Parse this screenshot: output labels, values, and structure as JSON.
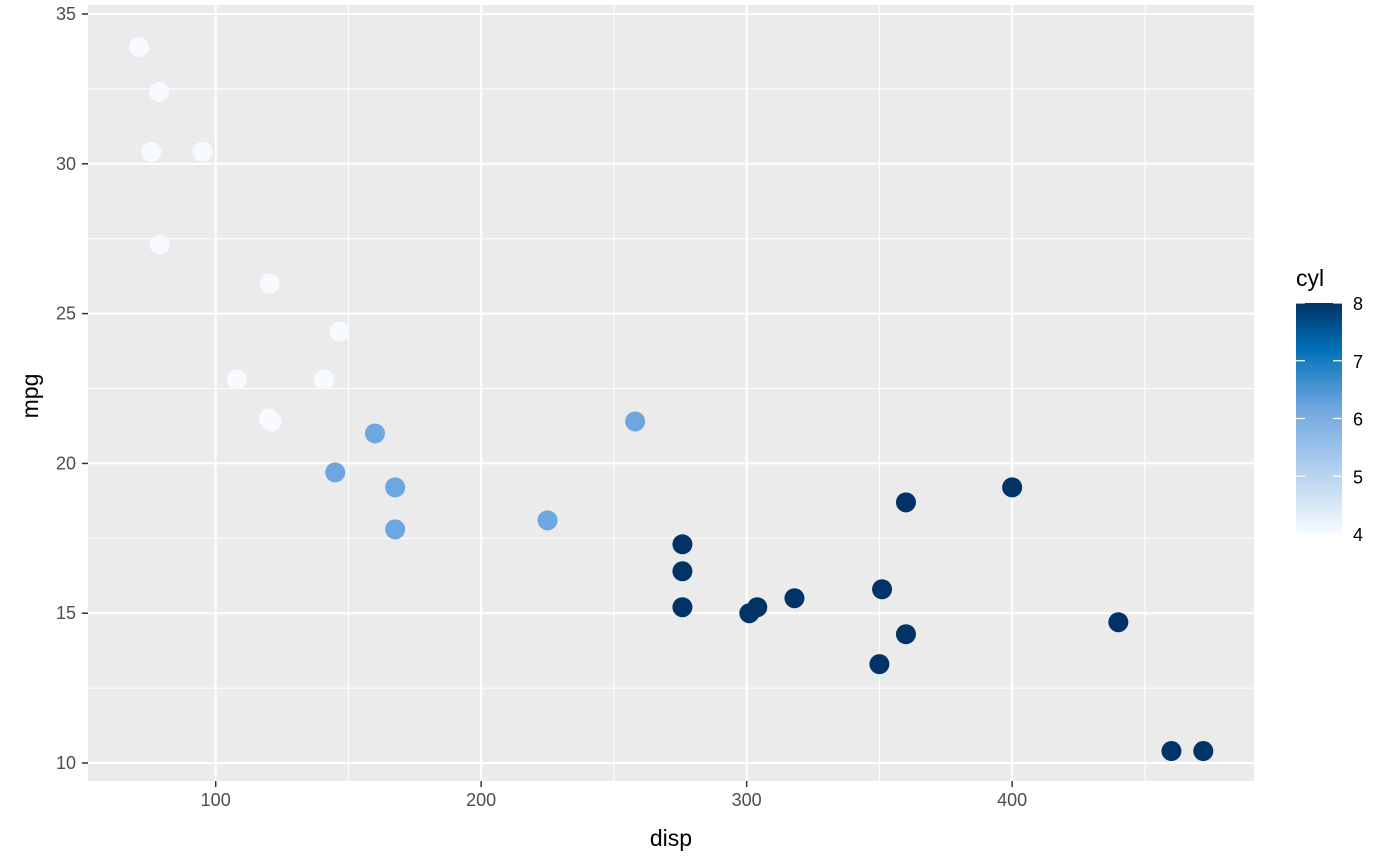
{
  "chart_data": {
    "type": "scatter",
    "title": "",
    "xlabel": "disp",
    "ylabel": "mpg",
    "xlim": [
      51.9,
      491.1
    ],
    "ylim": [
      9.4,
      35.3
    ],
    "x_ticks": [
      100,
      200,
      300,
      400
    ],
    "y_ticks": [
      10,
      15,
      20,
      25,
      30,
      35
    ],
    "grid": true,
    "panel_background": "#ebebeb",
    "grid_color": "#ffffff",
    "color_scale": {
      "title": "cyl",
      "min": 4,
      "max": 8,
      "breaks": [
        4,
        5,
        6,
        7,
        8
      ],
      "low_color": "#f7fbff",
      "mid_color": "#0072b8",
      "high_color": "#023366",
      "placement": "right"
    },
    "points": [
      {
        "x": 71.1,
        "y": 33.9,
        "cyl": 4
      },
      {
        "x": 78.7,
        "y": 32.4,
        "cyl": 4
      },
      {
        "x": 75.7,
        "y": 30.4,
        "cyl": 4
      },
      {
        "x": 95.1,
        "y": 30.4,
        "cyl": 4
      },
      {
        "x": 79.0,
        "y": 27.3,
        "cyl": 4
      },
      {
        "x": 120.3,
        "y": 26.0,
        "cyl": 4
      },
      {
        "x": 146.7,
        "y": 24.4,
        "cyl": 4
      },
      {
        "x": 108.0,
        "y": 22.8,
        "cyl": 4
      },
      {
        "x": 140.8,
        "y": 22.8,
        "cyl": 4
      },
      {
        "x": 120.1,
        "y": 21.5,
        "cyl": 4
      },
      {
        "x": 121.0,
        "y": 21.4,
        "cyl": 4
      },
      {
        "x": 160.0,
        "y": 21.0,
        "cyl": 6
      },
      {
        "x": 258.0,
        "y": 21.4,
        "cyl": 6
      },
      {
        "x": 145.0,
        "y": 19.7,
        "cyl": 6
      },
      {
        "x": 167.6,
        "y": 19.2,
        "cyl": 6
      },
      {
        "x": 225.0,
        "y": 18.1,
        "cyl": 6
      },
      {
        "x": 167.6,
        "y": 17.8,
        "cyl": 6
      },
      {
        "x": 360.0,
        "y": 18.7,
        "cyl": 8
      },
      {
        "x": 400.0,
        "y": 19.2,
        "cyl": 8
      },
      {
        "x": 275.8,
        "y": 17.3,
        "cyl": 8
      },
      {
        "x": 275.8,
        "y": 16.4,
        "cyl": 8
      },
      {
        "x": 275.8,
        "y": 15.2,
        "cyl": 8
      },
      {
        "x": 301.0,
        "y": 15.0,
        "cyl": 8
      },
      {
        "x": 304.0,
        "y": 15.2,
        "cyl": 8
      },
      {
        "x": 318.0,
        "y": 15.5,
        "cyl": 8
      },
      {
        "x": 351.0,
        "y": 15.8,
        "cyl": 8
      },
      {
        "x": 360.0,
        "y": 14.3,
        "cyl": 8
      },
      {
        "x": 350.0,
        "y": 13.3,
        "cyl": 8
      },
      {
        "x": 440.0,
        "y": 14.7,
        "cyl": 8
      },
      {
        "x": 460.0,
        "y": 10.4,
        "cyl": 8
      },
      {
        "x": 472.0,
        "y": 10.4,
        "cyl": 8
      }
    ]
  }
}
